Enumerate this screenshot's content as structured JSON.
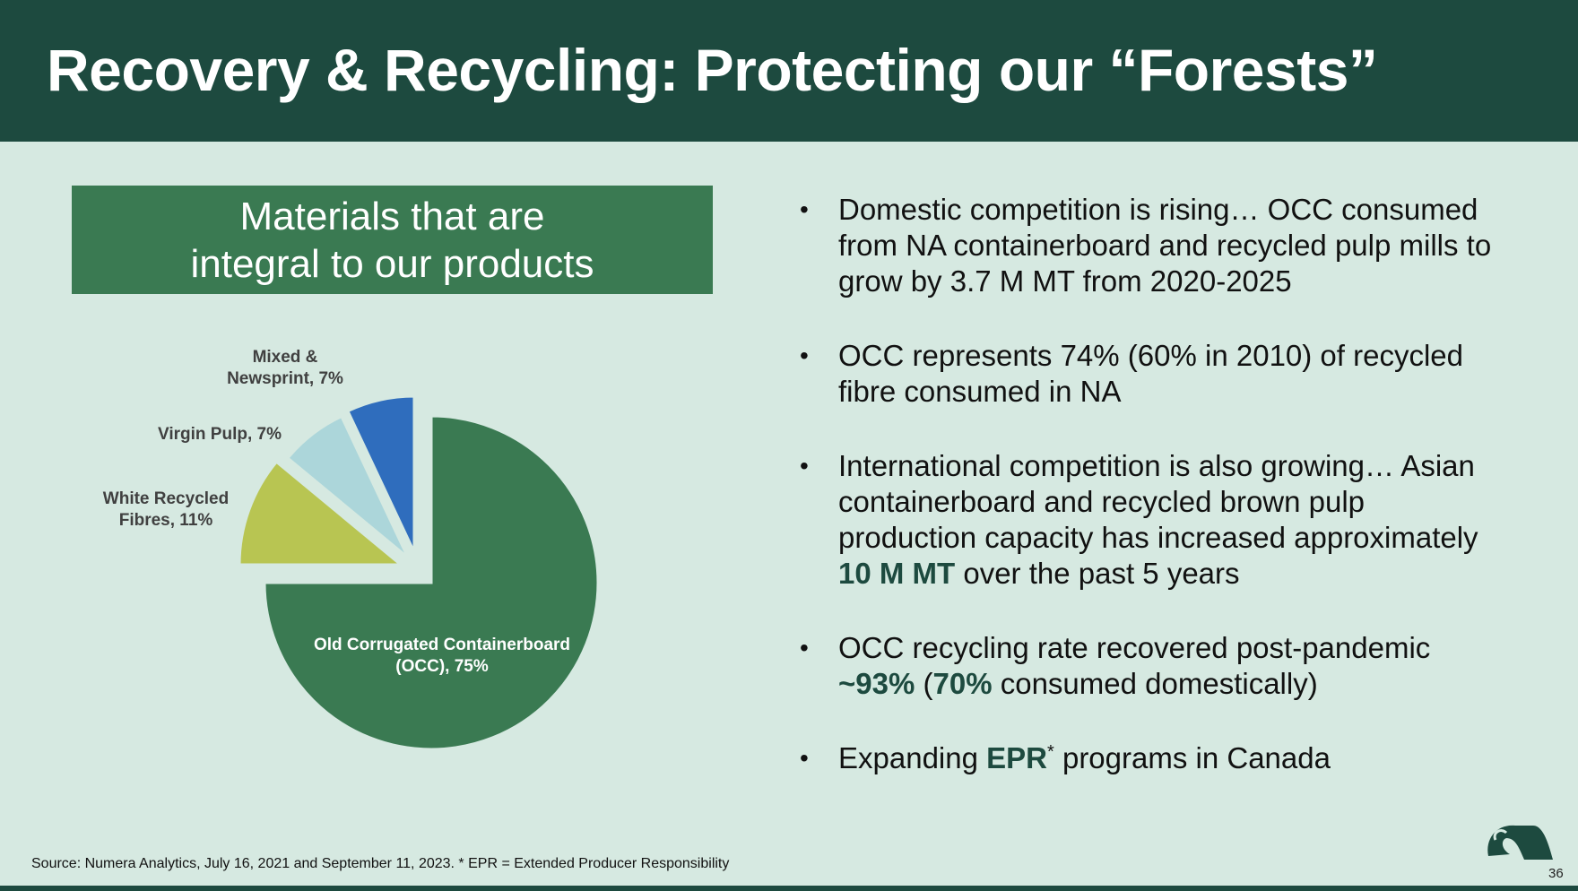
{
  "slide": {
    "title": "Recovery & Recycling: Protecting our “Forests”",
    "callout": "Materials that are\nintegral to our products",
    "bullets": [
      {
        "parts": [
          {
            "text": "Domestic competition is rising… OCC consumed from NA containerboard and recycled pulp mills to grow by 3.7 M MT from 2020-2025"
          }
        ]
      },
      {
        "parts": [
          {
            "text": "OCC represents 74% (60% in 2010) of recycled fibre consumed in NA"
          }
        ]
      },
      {
        "parts": [
          {
            "text": "International competition is also growing… Asian containerboard and recycled brown pulp production capacity has increased approximately "
          },
          {
            "text": "10 M MT",
            "highlight": true
          },
          {
            "text": " over the past 5 years"
          }
        ]
      },
      {
        "parts": [
          {
            "text": "OCC recycling rate recovered post-pandemic "
          },
          {
            "text": "~93%",
            "highlight": true
          },
          {
            "text": " ("
          },
          {
            "text": "70%",
            "highlight": true
          },
          {
            "text": " consumed domestically)"
          }
        ]
      },
      {
        "parts": [
          {
            "text": "Expanding "
          },
          {
            "text": "EPR",
            "highlight": true
          },
          {
            "text": "*",
            "sup": true
          },
          {
            "text": " programs in Canada"
          }
        ]
      }
    ],
    "source": "Source: Numera Analytics,  July 16, 2021 and September 11, 2023. * EPR = Extended Producer Responsibility",
    "page_number": "36",
    "logo_icon": "leaf-logo-icon",
    "colors": {
      "header": "#1d4a3f",
      "background": "#d6e9e1",
      "accent": "#3a7a52"
    }
  },
  "chart_data": {
    "type": "pie",
    "title": "",
    "start_angle_deg": 0,
    "exploded": [
      "White Recycled Fibres",
      "Virgin Pulp",
      "Mixed & Newsprint"
    ],
    "slices": [
      {
        "name": "Old Corrugated Containerboard (OCC)",
        "value": 75,
        "label_lines": [
          "Old Corrugated Containerboard",
          "(OCC), 75%"
        ],
        "color": "#3a7a52",
        "label_color": "#ffffff"
      },
      {
        "name": "White Recycled Fibres",
        "value": 11,
        "label_lines": [
          "White Recycled",
          "Fibres, 11%"
        ],
        "color": "#b8c552",
        "label_color": "#404040"
      },
      {
        "name": "Virgin Pulp",
        "value": 7,
        "label_lines": [
          "Virgin Pulp, 7%"
        ],
        "color": "#acd6da",
        "label_color": "#404040"
      },
      {
        "name": "Mixed & Newsprint",
        "value": 7,
        "label_lines": [
          "Mixed &",
          "Newsprint, 7%"
        ],
        "color": "#2f6dbd",
        "label_color": "#404040"
      }
    ]
  }
}
